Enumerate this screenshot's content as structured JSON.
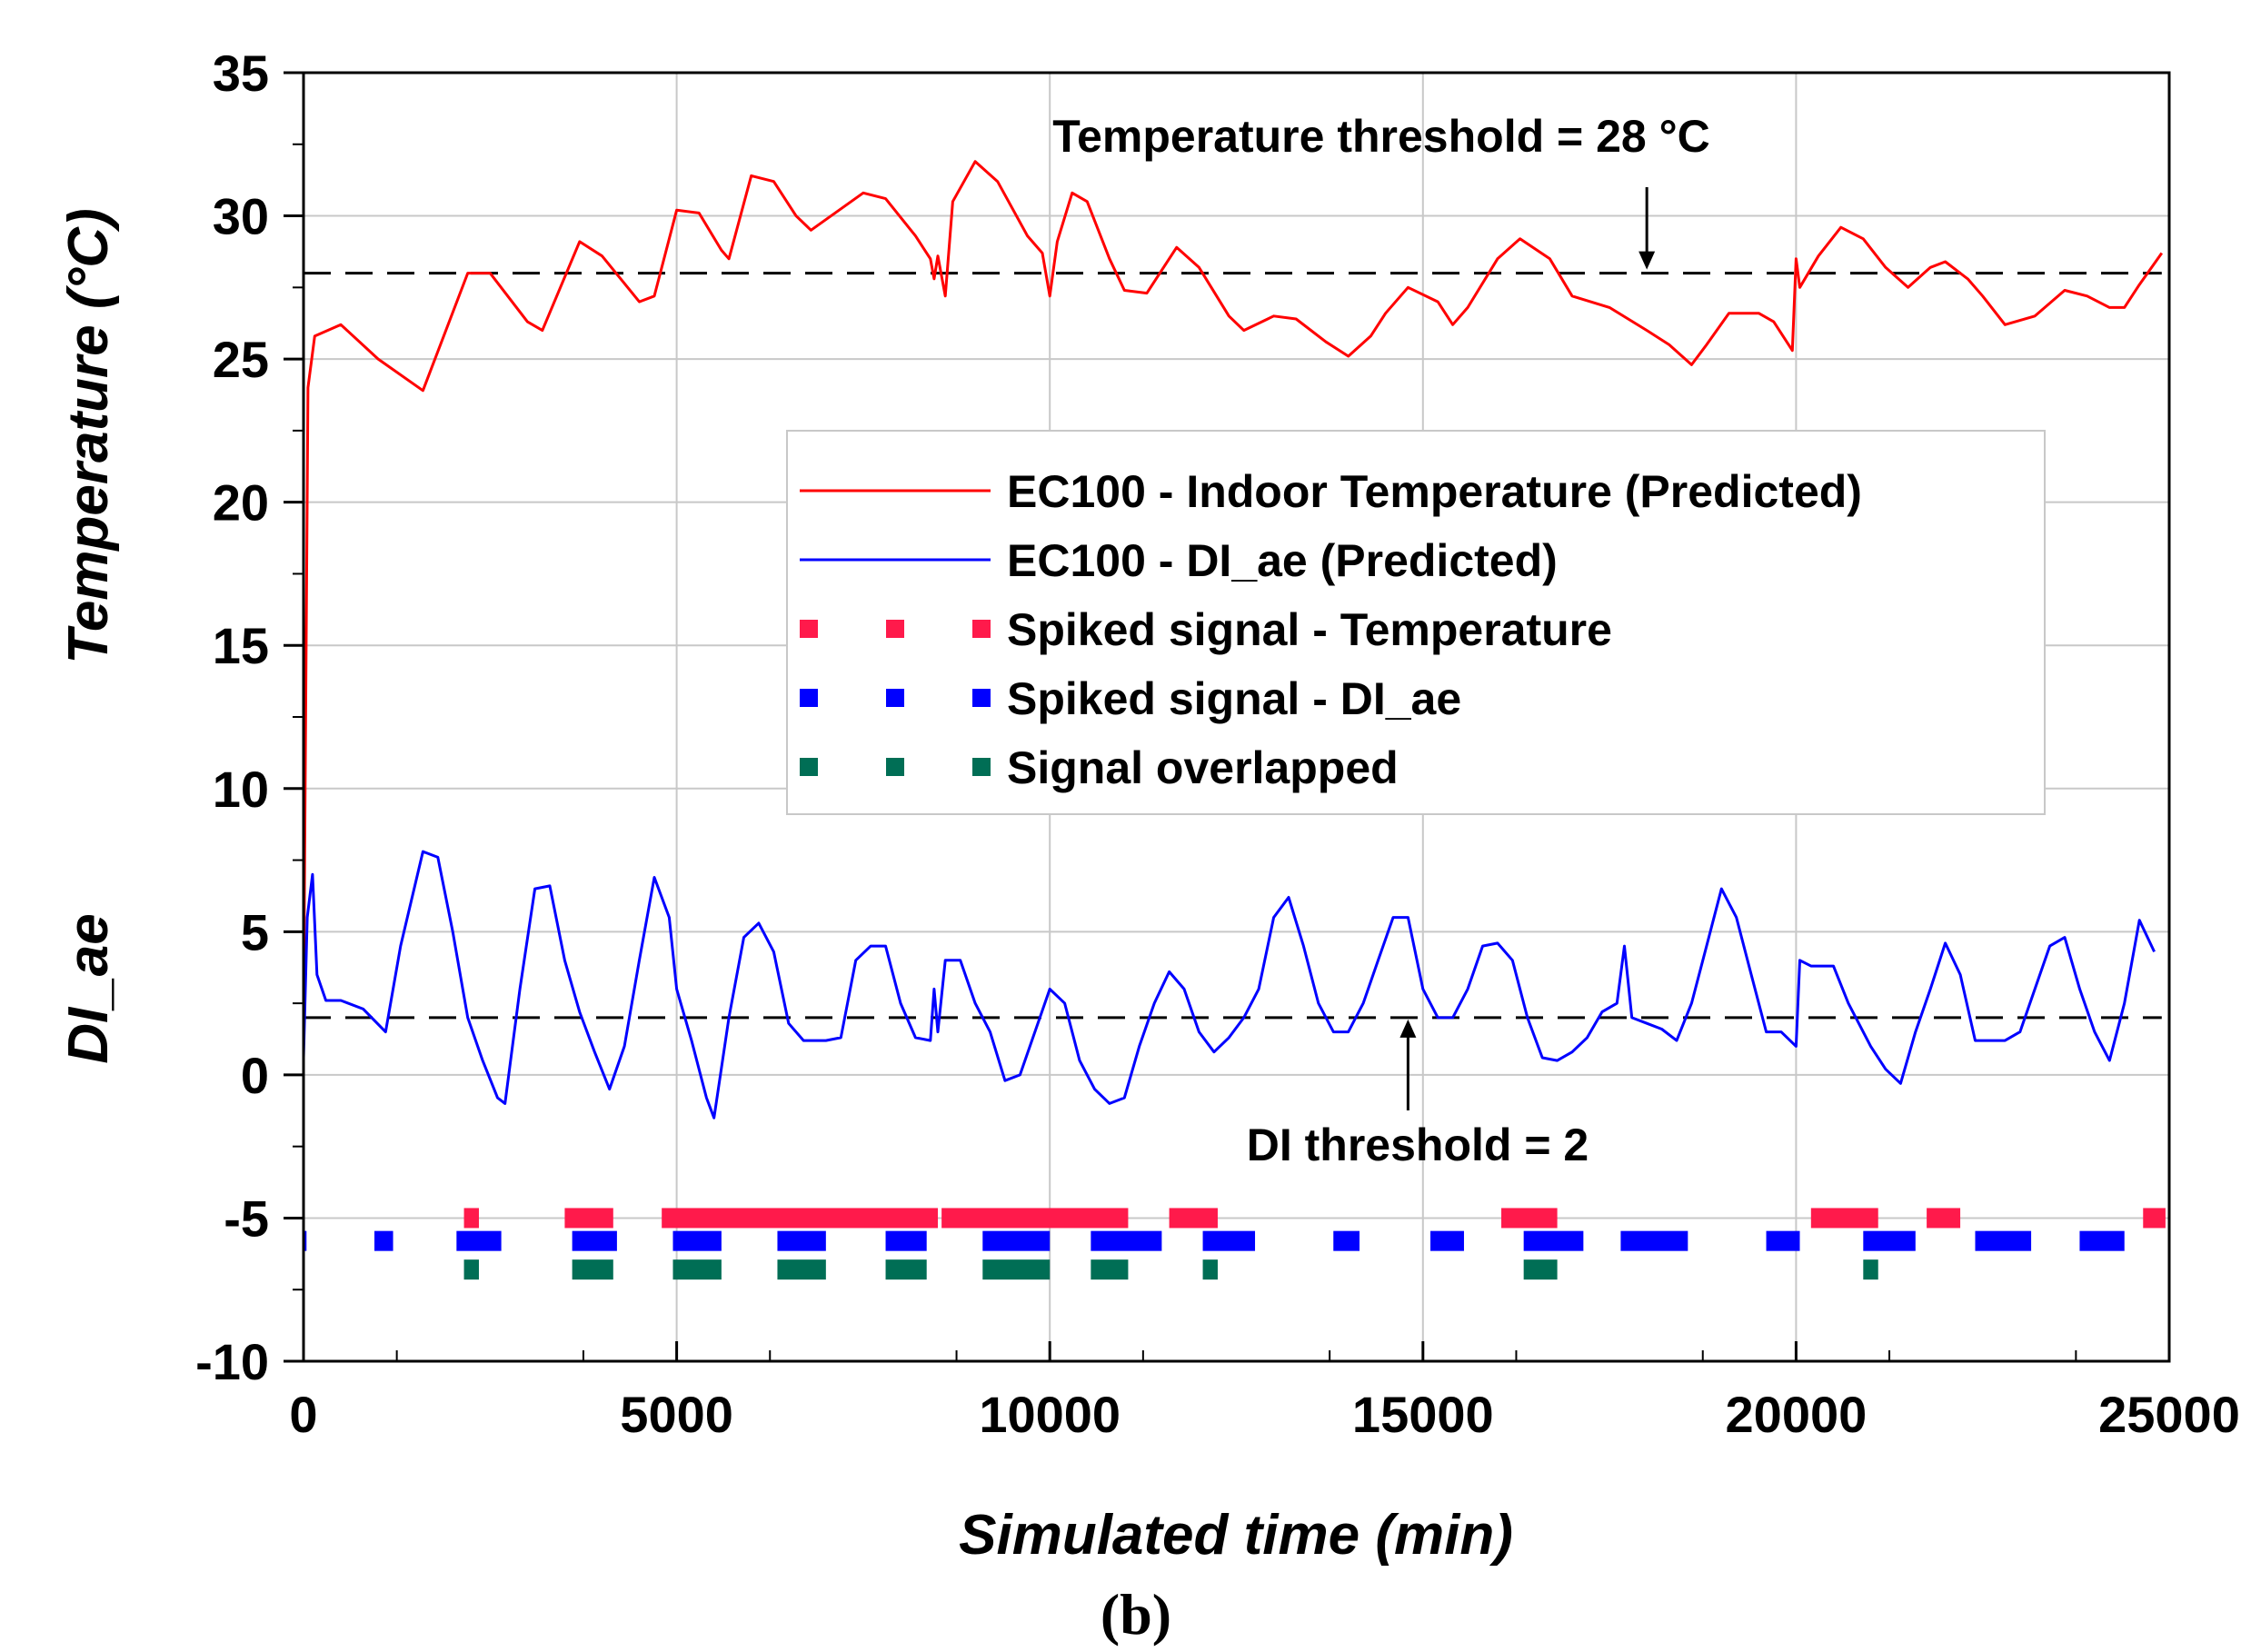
{
  "chart_data": {
    "type": "line",
    "xlabel": "Simulated time (min)",
    "ylabel_top": "Temperature (°C)",
    "ylabel_bottom": "DI_ae",
    "xlim": [
      0,
      25000
    ],
    "ylim": [
      -10,
      35
    ],
    "x_ticks": [
      0,
      5000,
      10000,
      15000,
      20000,
      25000
    ],
    "x_tick_labels": [
      "0",
      "5000",
      "10000",
      "15000",
      "20000",
      "25000"
    ],
    "y_ticks": [
      -10,
      -5,
      0,
      5,
      10,
      15,
      20,
      25,
      30,
      35
    ],
    "y_tick_labels": [
      "-10",
      "-5",
      "0",
      "5",
      "10",
      "15",
      "20",
      "25",
      "30",
      "35"
    ],
    "grid": true,
    "caption": "(b)",
    "thresholds": [
      {
        "name": "temperature-threshold",
        "y": 28,
        "label": "Temperature threshold = 28 °C",
        "arrow_x": 18000
      },
      {
        "name": "di-threshold",
        "y": 2,
        "label": "DI threshold = 2",
        "arrow_x": 14800
      }
    ],
    "series": [
      {
        "name": "EC100 - Indoor Temperature (Predicted)",
        "color": "#ff0000",
        "points": [
          [
            0,
            2
          ],
          [
            60,
            24
          ],
          [
            150,
            25.8
          ],
          [
            500,
            26.2
          ],
          [
            1000,
            25
          ],
          [
            1600,
            23.9
          ],
          [
            2200,
            28
          ],
          [
            2500,
            28
          ],
          [
            3000,
            26.3
          ],
          [
            3200,
            26
          ],
          [
            3700,
            29.1
          ],
          [
            4000,
            28.6
          ],
          [
            4500,
            27
          ],
          [
            4700,
            27.2
          ],
          [
            5000,
            30.2
          ],
          [
            5300,
            30.1
          ],
          [
            5600,
            28.8
          ],
          [
            5700,
            28.5
          ],
          [
            6000,
            31.4
          ],
          [
            6300,
            31.2
          ],
          [
            6600,
            30
          ],
          [
            6800,
            29.5
          ],
          [
            7500,
            30.8
          ],
          [
            7800,
            30.6
          ],
          [
            8200,
            29.3
          ],
          [
            8400,
            28.5
          ],
          [
            8450,
            27.8
          ],
          [
            8500,
            28.6
          ],
          [
            8600,
            27.2
          ],
          [
            8700,
            30.5
          ],
          [
            9000,
            31.9
          ],
          [
            9300,
            31.2
          ],
          [
            9700,
            29.3
          ],
          [
            9900,
            28.7
          ],
          [
            10000,
            27.2
          ],
          [
            10100,
            29.1
          ],
          [
            10300,
            30.8
          ],
          [
            10500,
            30.5
          ],
          [
            10800,
            28.5
          ],
          [
            11000,
            27.4
          ],
          [
            11300,
            27.3
          ],
          [
            11700,
            28.9
          ],
          [
            12000,
            28.2
          ],
          [
            12400,
            26.5
          ],
          [
            12600,
            26
          ],
          [
            13000,
            26.5
          ],
          [
            13300,
            26.4
          ],
          [
            13700,
            25.6
          ],
          [
            14000,
            25.1
          ],
          [
            14300,
            25.8
          ],
          [
            14500,
            26.6
          ],
          [
            14800,
            27.5
          ],
          [
            15200,
            27
          ],
          [
            15400,
            26.2
          ],
          [
            15600,
            26.8
          ],
          [
            16000,
            28.5
          ],
          [
            16300,
            29.2
          ],
          [
            16700,
            28.5
          ],
          [
            17000,
            27.2
          ],
          [
            17500,
            26.8
          ],
          [
            18000,
            26
          ],
          [
            18300,
            25.5
          ],
          [
            18600,
            24.8
          ],
          [
            18800,
            25.5
          ],
          [
            19100,
            26.6
          ],
          [
            19500,
            26.6
          ],
          [
            19700,
            26.3
          ],
          [
            19950,
            25.3
          ],
          [
            20000,
            28.5
          ],
          [
            20050,
            27.5
          ],
          [
            20300,
            28.6
          ],
          [
            20600,
            29.6
          ],
          [
            20900,
            29.2
          ],
          [
            21200,
            28.2
          ],
          [
            21500,
            27.5
          ],
          [
            21800,
            28.2
          ],
          [
            22000,
            28.4
          ],
          [
            22300,
            27.8
          ],
          [
            22500,
            27.2
          ],
          [
            22800,
            26.2
          ],
          [
            23200,
            26.5
          ],
          [
            23600,
            27.4
          ],
          [
            23900,
            27.2
          ],
          [
            24200,
            26.8
          ],
          [
            24400,
            26.8
          ],
          [
            24600,
            27.6
          ],
          [
            24900,
            28.7
          ]
        ]
      },
      {
        "name": "EC100 - DI_ae (Predicted)",
        "color": "#0000ff",
        "points": [
          [
            0,
            0.6
          ],
          [
            50,
            5.5
          ],
          [
            120,
            7
          ],
          [
            180,
            3.5
          ],
          [
            300,
            2.6
          ],
          [
            500,
            2.6
          ],
          [
            800,
            2.3
          ],
          [
            1100,
            1.5
          ],
          [
            1300,
            4.5
          ],
          [
            1600,
            7.8
          ],
          [
            1800,
            7.6
          ],
          [
            2000,
            5
          ],
          [
            2200,
            2
          ],
          [
            2400,
            0.5
          ],
          [
            2600,
            -0.8
          ],
          [
            2700,
            -1
          ],
          [
            2900,
            3
          ],
          [
            3100,
            6.5
          ],
          [
            3300,
            6.6
          ],
          [
            3500,
            4
          ],
          [
            3700,
            2.2
          ],
          [
            3900,
            0.8
          ],
          [
            4100,
            -0.5
          ],
          [
            4300,
            1
          ],
          [
            4500,
            4
          ],
          [
            4700,
            6.9
          ],
          [
            4900,
            5.5
          ],
          [
            5000,
            3
          ],
          [
            5200,
            1.2
          ],
          [
            5400,
            -0.8
          ],
          [
            5500,
            -1.5
          ],
          [
            5700,
            2
          ],
          [
            5900,
            4.8
          ],
          [
            6100,
            5.3
          ],
          [
            6300,
            4.3
          ],
          [
            6500,
            1.8
          ],
          [
            6700,
            1.2
          ],
          [
            7000,
            1.2
          ],
          [
            7200,
            1.3
          ],
          [
            7400,
            4
          ],
          [
            7600,
            4.5
          ],
          [
            7800,
            4.5
          ],
          [
            8000,
            2.5
          ],
          [
            8200,
            1.3
          ],
          [
            8400,
            1.2
          ],
          [
            8450,
            3
          ],
          [
            8500,
            1.5
          ],
          [
            8600,
            4
          ],
          [
            8800,
            4
          ],
          [
            9000,
            2.5
          ],
          [
            9200,
            1.5
          ],
          [
            9400,
            -0.2
          ],
          [
            9600,
            0
          ],
          [
            9800,
            1.5
          ],
          [
            10000,
            3
          ],
          [
            10200,
            2.5
          ],
          [
            10400,
            0.5
          ],
          [
            10600,
            -0.5
          ],
          [
            10800,
            -1
          ],
          [
            11000,
            -0.8
          ],
          [
            11200,
            1
          ],
          [
            11400,
            2.5
          ],
          [
            11600,
            3.6
          ],
          [
            11800,
            3
          ],
          [
            12000,
            1.5
          ],
          [
            12200,
            0.8
          ],
          [
            12400,
            1.3
          ],
          [
            12600,
            2
          ],
          [
            12800,
            3
          ],
          [
            13000,
            5.5
          ],
          [
            13200,
            6.2
          ],
          [
            13400,
            4.5
          ],
          [
            13600,
            2.5
          ],
          [
            13800,
            1.5
          ],
          [
            14000,
            1.5
          ],
          [
            14200,
            2.5
          ],
          [
            14400,
            4
          ],
          [
            14600,
            5.5
          ],
          [
            14800,
            5.5
          ],
          [
            15000,
            3
          ],
          [
            15200,
            2
          ],
          [
            15400,
            2
          ],
          [
            15600,
            3
          ],
          [
            15800,
            4.5
          ],
          [
            16000,
            4.6
          ],
          [
            16200,
            4
          ],
          [
            16400,
            2
          ],
          [
            16600,
            0.6
          ],
          [
            16800,
            0.5
          ],
          [
            17000,
            0.8
          ],
          [
            17200,
            1.3
          ],
          [
            17400,
            2.2
          ],
          [
            17600,
            2.5
          ],
          [
            17700,
            4.5
          ],
          [
            17800,
            2
          ],
          [
            18000,
            1.8
          ],
          [
            18200,
            1.6
          ],
          [
            18400,
            1.2
          ],
          [
            18600,
            2.5
          ],
          [
            18800,
            4.5
          ],
          [
            19000,
            6.5
          ],
          [
            19200,
            5.5
          ],
          [
            19400,
            3.5
          ],
          [
            19600,
            1.5
          ],
          [
            19800,
            1.5
          ],
          [
            20000,
            1
          ],
          [
            20050,
            4
          ],
          [
            20200,
            3.8
          ],
          [
            20500,
            3.8
          ],
          [
            20700,
            2.5
          ],
          [
            21000,
            1
          ],
          [
            21200,
            0.2
          ],
          [
            21400,
            -0.3
          ],
          [
            21600,
            1.5
          ],
          [
            21800,
            3
          ],
          [
            22000,
            4.6
          ],
          [
            22200,
            3.5
          ],
          [
            22400,
            1.2
          ],
          [
            22800,
            1.2
          ],
          [
            23000,
            1.5
          ],
          [
            23200,
            3
          ],
          [
            23400,
            4.5
          ],
          [
            23600,
            4.8
          ],
          [
            23800,
            3
          ],
          [
            24000,
            1.5
          ],
          [
            24200,
            0.5
          ],
          [
            24400,
            2.5
          ],
          [
            24600,
            5.4
          ],
          [
            24800,
            4.3
          ]
        ]
      }
    ],
    "spike_bands": [
      {
        "name": "Spiked signal - Temperature",
        "color": "#ff1a4b",
        "y": -5,
        "segments": [
          [
            2150,
            2350
          ],
          [
            3500,
            4150
          ],
          [
            4800,
            8500
          ],
          [
            8550,
            11050
          ],
          [
            11600,
            12250
          ],
          [
            16050,
            16800
          ],
          [
            20200,
            21100
          ],
          [
            21750,
            22200
          ],
          [
            24650,
            24950
          ]
        ]
      },
      {
        "name": "Spiked signal - DI_ae",
        "color": "#0000ff",
        "y": -5.8,
        "segments": [
          [
            0,
            40
          ],
          [
            950,
            1200
          ],
          [
            2050,
            2650
          ],
          [
            3600,
            4200
          ],
          [
            4950,
            5600
          ],
          [
            6350,
            7000
          ],
          [
            7800,
            8350
          ],
          [
            9100,
            10000
          ],
          [
            10550,
            11500
          ],
          [
            12050,
            12750
          ],
          [
            13800,
            14150
          ],
          [
            15100,
            15550
          ],
          [
            16350,
            17150
          ],
          [
            17650,
            18550
          ],
          [
            19600,
            20050
          ],
          [
            20900,
            21600
          ],
          [
            22400,
            23150
          ],
          [
            23800,
            24400
          ]
        ]
      },
      {
        "name": "Signal overlapped",
        "color": "#006e55",
        "y": -6.8,
        "segments": [
          [
            2150,
            2350
          ],
          [
            3600,
            4150
          ],
          [
            4950,
            5600
          ],
          [
            6350,
            7000
          ],
          [
            7800,
            8350
          ],
          [
            9100,
            10000
          ],
          [
            10550,
            11050
          ],
          [
            12050,
            12250
          ],
          [
            16350,
            16800
          ],
          [
            20900,
            21100
          ]
        ]
      }
    ],
    "legend": {
      "placement": "center-right",
      "items": [
        {
          "label": "EC100 - Indoor Temperature (Predicted)",
          "style": "line",
          "color": "#ff0000"
        },
        {
          "label": "EC100 - DI_ae (Predicted)",
          "style": "line",
          "color": "#0000ff"
        },
        {
          "label": "Spiked signal - Temperature",
          "style": "dash",
          "color": "#ff1a4b"
        },
        {
          "label": "Spiked signal - DI_ae",
          "style": "dash",
          "color": "#0000ff"
        },
        {
          "label": "Signal overlapped",
          "style": "dash",
          "color": "#006e55"
        }
      ]
    }
  }
}
